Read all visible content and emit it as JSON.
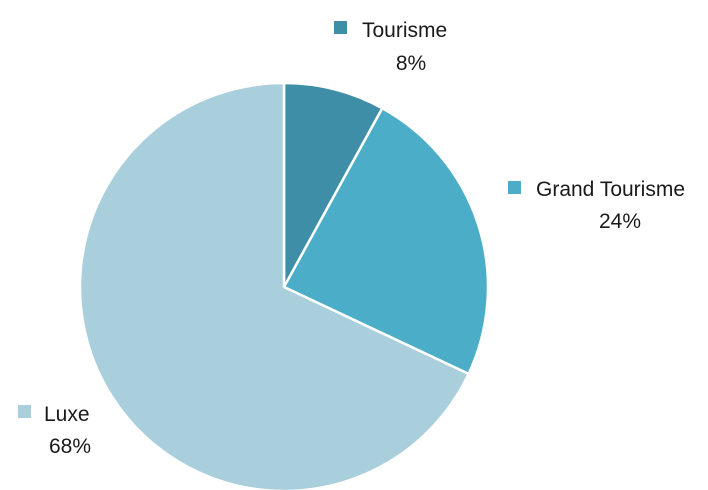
{
  "chart_data": {
    "type": "pie",
    "title": "",
    "slices": [
      {
        "label": "Tourisme",
        "value": 8,
        "display": "8%",
        "color": "#3d8ea6"
      },
      {
        "label": "Grand Tourisme",
        "value": 24,
        "display": "24%",
        "color": "#4badc7"
      },
      {
        "label": "Luxe",
        "value": 68,
        "display": "68%",
        "color": "#a9cedc"
      }
    ],
    "start_angle": "12 o'clock",
    "direction": "clockwise",
    "legend": "inline labels beside slices"
  }
}
